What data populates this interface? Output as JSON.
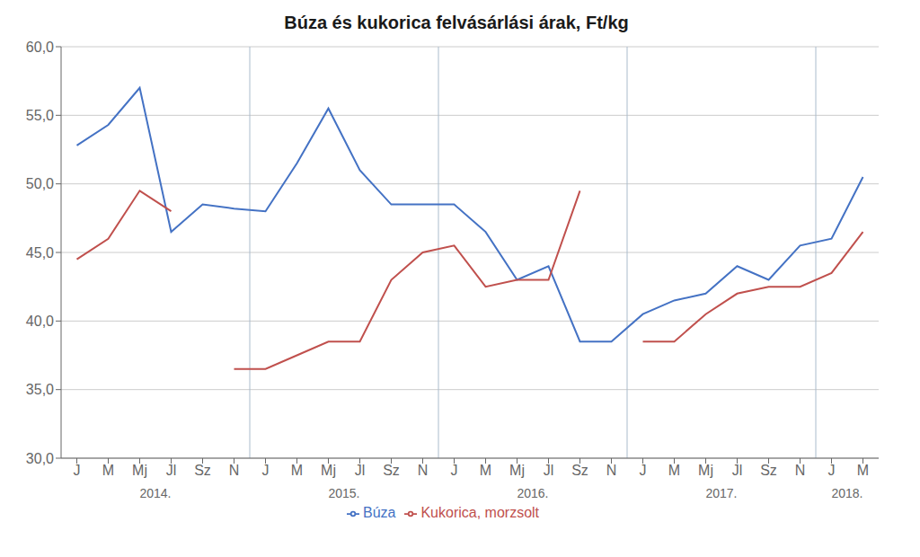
{
  "chart_data": {
    "type": "line",
    "title": "Búza és kukorica felvásárlási árak, Ft/kg",
    "categories": [
      "J",
      "M",
      "Mj",
      "Jl",
      "Sz",
      "N",
      "J",
      "M",
      "Mj",
      "Jl",
      "Sz",
      "N",
      "J",
      "M",
      "Mj",
      "Jl",
      "Sz",
      "N",
      "J",
      "M",
      "Mj",
      "Jl",
      "Sz",
      "N",
      "J",
      "M"
    ],
    "series": [
      {
        "name": "Búza",
        "color": "#4472c4",
        "values": [
          52.8,
          54.3,
          57.0,
          46.5,
          48.5,
          48.2,
          48.0,
          51.5,
          55.5,
          51.0,
          48.5,
          48.5,
          48.5,
          46.5,
          43.0,
          44.0,
          38.5,
          38.5,
          40.5,
          41.5,
          42.0,
          44.0,
          43.0,
          45.5,
          46.0,
          50.5
        ]
      },
      {
        "name": "Kukorica, morzsolt",
        "color": "#c0504d",
        "values": [
          44.5,
          46.0,
          49.5,
          48.0,
          null,
          36.5,
          36.5,
          37.5,
          38.5,
          38.5,
          43.0,
          45.0,
          45.5,
          42.5,
          43.0,
          43.0,
          49.5,
          null,
          38.5,
          38.5,
          40.5,
          42.0,
          42.5,
          42.5,
          43.5,
          46.5
        ]
      }
    ],
    "ylim": [
      30.0,
      60.0
    ],
    "yticks": [
      {
        "value": 30,
        "label": "30,0"
      },
      {
        "value": 35,
        "label": "35,0"
      },
      {
        "value": 40,
        "label": "40,0"
      },
      {
        "value": 45,
        "label": "45,0"
      },
      {
        "value": 50,
        "label": "50,0"
      },
      {
        "value": 55,
        "label": "55,0"
      },
      {
        "value": 60,
        "label": "60,0"
      }
    ],
    "annotations": [
      {
        "text": "2014.",
        "x": 2.5
      },
      {
        "text": "2015.",
        "x": 8.5
      },
      {
        "text": "2016.",
        "x": 14.5
      },
      {
        "text": "2017.",
        "x": 20.5
      },
      {
        "text": "2018.",
        "x": 24.5
      }
    ],
    "x_separators": [
      5.5,
      11.5,
      17.5,
      23.5
    ],
    "grid": true,
    "legend": "bottom"
  }
}
